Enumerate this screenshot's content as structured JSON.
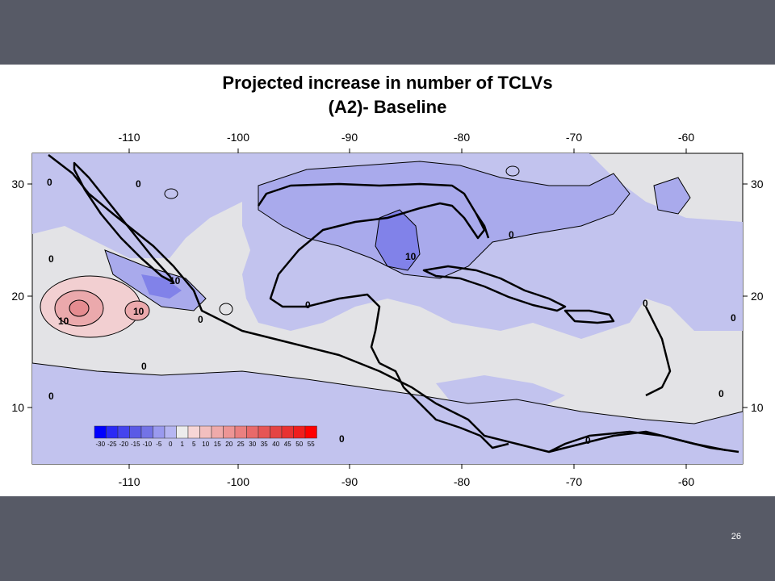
{
  "slide": {
    "title_line1": "Projected  increase in number of TCLVs",
    "title_line2": "(A2)- Baseline",
    "page_number": "26"
  },
  "map": {
    "lon_ticks": [
      "-110",
      "-100",
      "-90",
      "-80",
      "-70",
      "-60"
    ],
    "lat_ticks": [
      "30",
      "20",
      "10"
    ],
    "contour_labels": [
      "10",
      "10",
      "10",
      "10",
      "0",
      "0",
      "0",
      "0",
      "0",
      "0",
      "0",
      "0",
      "0",
      "0",
      "0",
      "0",
      "0"
    ],
    "colorbar": {
      "labels": [
        "-30",
        "-25",
        "-20",
        "-15",
        "-10",
        "-5",
        "0",
        "1",
        "5",
        "10",
        "15",
        "20",
        "25",
        "30",
        "35",
        "40",
        "45",
        "50",
        "55"
      ],
      "colors": [
        "#0000ff",
        "#2a2af5",
        "#4444ee",
        "#5a5ae6",
        "#7373e6",
        "#9a9aef",
        "#b6b6f2",
        "#ececec",
        "#f7d6d6",
        "#f2bfbf",
        "#efaaaa",
        "#ed9595",
        "#ea8080",
        "#e86a6a",
        "#e65555",
        "#e44444",
        "#e83232",
        "#ef1e1e",
        "#ff0000"
      ]
    },
    "colors": {
      "neutral": "#e3e3e6",
      "light_blue": "#c2c3ee",
      "mid_blue": "#a9aaec",
      "dark_blue": "#8182e9",
      "pink_light": "#f2cfd1",
      "pink_mid": "#eba9ac",
      "slide_background": "#575a66"
    }
  }
}
